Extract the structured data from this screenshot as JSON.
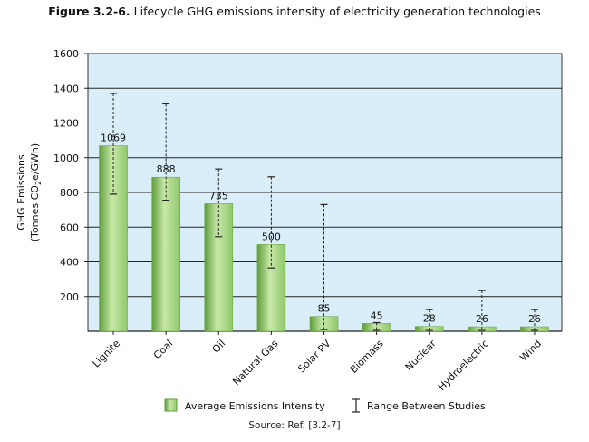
{
  "figure": {
    "number": "Figure 3.2-6.",
    "caption": "Lifecycle GHG emissions intensity of electricity generation technologies",
    "source": "Source: Ref. [3.2-7]"
  },
  "chart_data": {
    "type": "bar",
    "title": "Lifecycle GHG emissions intensity of electricity generation technologies",
    "ylabel_line1": "GHG Emissions",
    "ylabel_line2_parts": [
      "(Tonnes CO",
      "2",
      "e/GWh)"
    ],
    "ylim": [
      0,
      1600
    ],
    "yticks": [
      200,
      400,
      600,
      800,
      1000,
      1200,
      1400,
      1600
    ],
    "grid": true,
    "categories": [
      "Lignite",
      "Coal",
      "Oil",
      "Natural Gas",
      "Solar PV",
      "Biomass",
      "Nuclear",
      "Hydroelectric",
      "Wind"
    ],
    "values": [
      1069,
      888,
      735,
      500,
      85,
      45,
      28,
      26,
      26
    ],
    "value_labels": [
      "1069",
      "888",
      "735",
      "500",
      "85",
      "45",
      "28",
      "26",
      "26"
    ],
    "range_low": [
      790,
      755,
      545,
      365,
      10,
      5,
      5,
      5,
      5
    ],
    "range_high": [
      1370,
      1310,
      935,
      890,
      730,
      50,
      125,
      235,
      125
    ],
    "legend": {
      "placement": "bottom",
      "bar_label": "Average Emissions Intensity",
      "range_label": "Range Between Studies"
    },
    "colors": {
      "plot_bg": "#d9eef8",
      "bar_fill": "#8fc86a",
      "bar_light": "#c8e8a8",
      "bar_dark": "#5f9e3c",
      "gridline": "#222222",
      "whisker": "#222222"
    }
  }
}
